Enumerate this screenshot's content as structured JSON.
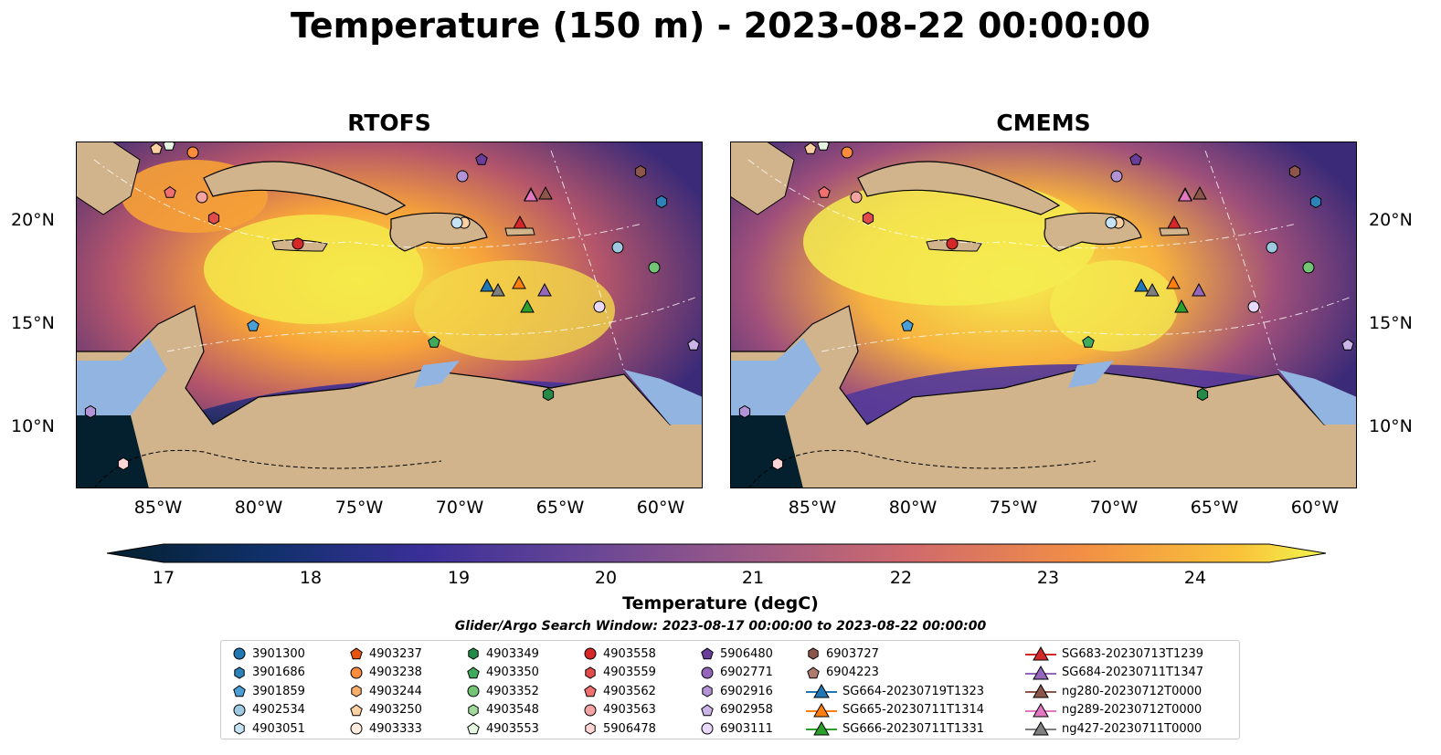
{
  "title": "Temperature (150 m) - 2023-08-22 00:00:00",
  "panels": [
    {
      "title": "RTOFS"
    },
    {
      "title": "CMEMS"
    }
  ],
  "axes": {
    "lat_labels": [
      "20°N",
      "15°N",
      "10°N"
    ],
    "lon_labels": [
      "85°W",
      "80°W",
      "75°W",
      "70°W",
      "65°W",
      "60°W"
    ]
  },
  "colorbar": {
    "label": "Temperature (degC)",
    "ticks": [
      "17",
      "18",
      "19",
      "20",
      "21",
      "22",
      "23",
      "24"
    ],
    "range": [
      17,
      24.5
    ],
    "colormap": "thermal",
    "extend": "both"
  },
  "search_window": "Glider/Argo Search Window: 2023-08-17 00:00:00 to 2023-08-22 00:00:00",
  "legend": {
    "columns": [
      [
        {
          "label": "3901300",
          "marker": "circle",
          "color": "#1f77b4"
        },
        {
          "label": "3901686",
          "marker": "hexagon",
          "color": "#2b83ba"
        },
        {
          "label": "3901859",
          "marker": "pentagon",
          "color": "#4a9fd6"
        },
        {
          "label": "4902534",
          "marker": "circle",
          "color": "#9ecae1"
        },
        {
          "label": "4903051",
          "marker": "hexagon",
          "color": "#c6e2f5"
        }
      ],
      [
        {
          "label": "4903237",
          "marker": "pentagon",
          "color": "#e6550d"
        },
        {
          "label": "4903238",
          "marker": "circle",
          "color": "#fd8d3c"
        },
        {
          "label": "4903244",
          "marker": "hexagon",
          "color": "#fdae6b"
        },
        {
          "label": "4903250",
          "marker": "pentagon",
          "color": "#fdd0a2"
        },
        {
          "label": "4903333",
          "marker": "circle",
          "color": "#feedde"
        }
      ],
      [
        {
          "label": "4903349",
          "marker": "hexagon",
          "color": "#238b45"
        },
        {
          "label": "4903350",
          "marker": "pentagon",
          "color": "#41ab5d"
        },
        {
          "label": "4903352",
          "marker": "circle",
          "color": "#74c476"
        },
        {
          "label": "4903548",
          "marker": "hexagon",
          "color": "#a1d99b"
        },
        {
          "label": "4903553",
          "marker": "pentagon",
          "color": "#e5f5e0"
        }
      ],
      [
        {
          "label": "4903558",
          "marker": "circle",
          "color": "#d62728"
        },
        {
          "label": "4903559",
          "marker": "hexagon",
          "color": "#e34a4a"
        },
        {
          "label": "4903562",
          "marker": "pentagon",
          "color": "#f07070"
        },
        {
          "label": "4903563",
          "marker": "circle",
          "color": "#f4a3a3"
        },
        {
          "label": "5906478",
          "marker": "hexagon",
          "color": "#fdd5d5"
        }
      ],
      [
        {
          "label": "5906480",
          "marker": "pentagon",
          "color": "#6a3d9a"
        },
        {
          "label": "6902771",
          "marker": "circle",
          "color": "#9467bd"
        },
        {
          "label": "6902916",
          "marker": "hexagon",
          "color": "#b294d6"
        },
        {
          "label": "6902958",
          "marker": "pentagon",
          "color": "#cbb5e8"
        },
        {
          "label": "6903111",
          "marker": "circle",
          "color": "#e8d8fa"
        }
      ],
      [
        {
          "label": "6903727",
          "marker": "hexagon",
          "color": "#8c564b"
        },
        {
          "label": "6904223",
          "marker": "pentagon",
          "color": "#b07b6f"
        },
        {
          "label": "SG664-20230719T1323",
          "marker": "triangle-line",
          "color": "#1f77b4"
        },
        {
          "label": "SG665-20230711T1314",
          "marker": "triangle-line",
          "color": "#ff7f0e"
        },
        {
          "label": "SG666-20230711T1331",
          "marker": "triangle-line",
          "color": "#2ca02c"
        }
      ],
      [
        {
          "label": "SG683-20230713T1239",
          "marker": "triangle-line",
          "color": "#d62728"
        },
        {
          "label": "SG684-20230711T1347",
          "marker": "triangle-line",
          "color": "#9467bd"
        },
        {
          "label": "ng280-20230712T0000",
          "marker": "triangle-line",
          "color": "#8c564b"
        },
        {
          "label": "ng289-20230712T0000",
          "marker": "triangle-line",
          "color": "#e377c2"
        },
        {
          "label": "ng427-20230711T0000",
          "marker": "triangle-line",
          "color": "#7f7f7f"
        }
      ]
    ]
  },
  "colors": {
    "land": "#d2b48c",
    "shelf": "#92b4e0",
    "deep": "#04202e"
  }
}
